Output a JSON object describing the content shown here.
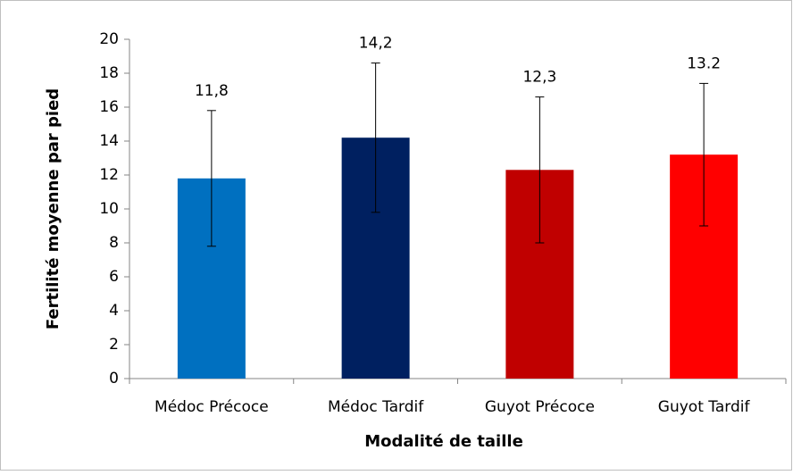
{
  "chart_data": {
    "type": "bar",
    "x_label": "Modalité de taille",
    "y_label": "Fertilité moyenne par pied",
    "categories": [
      "Médoc Précoce",
      "Médoc Tardif",
      "Guyot Précoce",
      "Guyot Tardif"
    ],
    "values": [
      11.8,
      14.2,
      12.3,
      13.2
    ],
    "value_labels": [
      "11,8",
      "14,2",
      "12,3",
      "13.2"
    ],
    "errors": [
      4.0,
      4.4,
      4.3,
      4.2
    ],
    "colors": [
      "#0070c0",
      "#002060",
      "#c00000",
      "#ff0000"
    ],
    "ylim": [
      0,
      20
    ],
    "yticks": [
      0,
      2,
      4,
      6,
      8,
      10,
      12,
      14,
      16,
      18,
      20
    ],
    "grid": false
  }
}
